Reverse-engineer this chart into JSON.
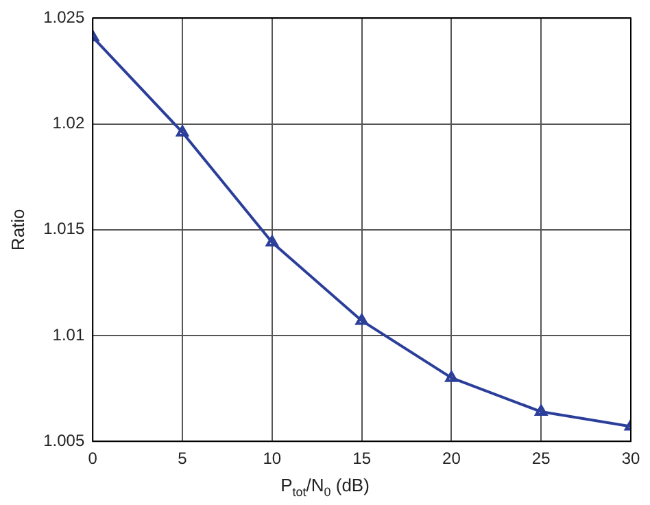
{
  "chart_data": {
    "type": "line",
    "xlabel": "P$_{tot}$/N$_{0}$ (dB)",
    "ylabel": "Ratio",
    "x": [
      0,
      5,
      10,
      15,
      20,
      25,
      30
    ],
    "series": [
      {
        "color": "#2b3f9a",
        "values": [
          1.0241,
          1.0196,
          1.0144,
          1.0107,
          1.008,
          1.0064,
          1.0057
        ]
      }
    ],
    "xlim": [
      0,
      30
    ],
    "xticks": [
      0,
      5,
      10,
      15,
      20,
      25,
      30
    ],
    "ylim": [
      1.005,
      1.025
    ],
    "yticks": [
      1.005,
      1.01,
      1.015,
      1.02,
      1.025
    ],
    "grid": true,
    "legend": false,
    "marker": "triangle",
    "line_style": "solid"
  }
}
